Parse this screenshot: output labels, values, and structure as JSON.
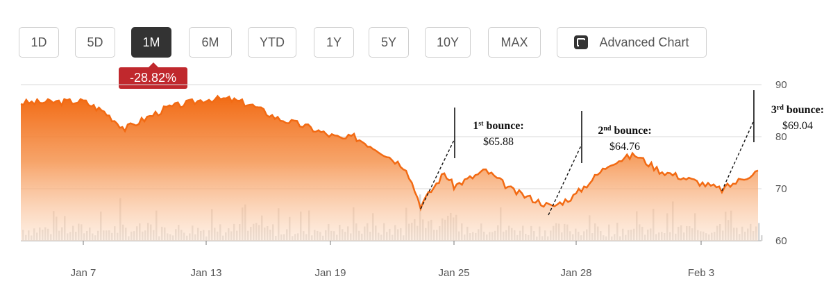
{
  "toolbar": {
    "ranges": [
      {
        "label": "1D",
        "active": false
      },
      {
        "label": "5D",
        "active": false
      },
      {
        "label": "1M",
        "active": true
      },
      {
        "label": "6M",
        "active": false
      },
      {
        "label": "YTD",
        "active": false
      },
      {
        "label": "1Y",
        "active": false
      },
      {
        "label": "5Y",
        "active": false
      },
      {
        "label": "10Y",
        "active": false
      },
      {
        "label": "MAX",
        "active": false
      }
    ],
    "advanced_label": "Advanced Chart",
    "advanced_icon": "expand-chart-icon"
  },
  "change_badge": "-28.82%",
  "colors": {
    "accent": "#f26a13",
    "badge": "#c0282d",
    "active_button": "#333333",
    "volume": "#c8c8c8"
  },
  "chart_data": {
    "type": "area",
    "title": "",
    "xlabel": "",
    "ylabel": "",
    "ylim": [
      60,
      90
    ],
    "y_ticks": [
      90,
      80,
      70,
      60
    ],
    "x_ticks": [
      "Jan 7",
      "Jan 13",
      "Jan 19",
      "Jan 25",
      "Jan 28",
      "Feb 3"
    ],
    "grid": "horizontal",
    "x": [
      "Jan 6",
      "Jan 7",
      "Jan 8",
      "Jan 9",
      "Jan 10",
      "Jan 13",
      "Jan 14",
      "Jan 15",
      "Jan 16",
      "Jan 17",
      "Jan 18",
      "Jan 19",
      "Jan 20",
      "Jan 21",
      "Jan 22",
      "Jan 23",
      "Jan 24",
      "Jan 25",
      "Jan 26",
      "Jan 27",
      "Jan 28",
      "Jan 29",
      "Jan 30",
      "Jan 31",
      "Feb 1",
      "Feb 2",
      "Feb 3",
      "Feb 4"
    ],
    "series": [
      {
        "values": [
          86.5,
          86.8,
          84.8,
          81.5,
          85.5,
          87.2,
          87.2,
          86.2,
          83.5,
          82,
          80.5,
          79.5,
          80,
          77.5,
          74,
          66.8,
          73,
          70.5,
          73.5,
          69.5,
          66.5,
          68.5,
          75,
          76.5,
          73.5,
          71.5,
          69.8,
          73.5
        ]
      }
    ],
    "volume_axis": "unlabeled",
    "annotations": [
      {
        "title": "1st bounce:",
        "value": "$65.88"
      },
      {
        "title": "2nd bounce:",
        "value": "$64.76"
      },
      {
        "title": "3rd bounce:",
        "value": "$69.04"
      }
    ]
  }
}
